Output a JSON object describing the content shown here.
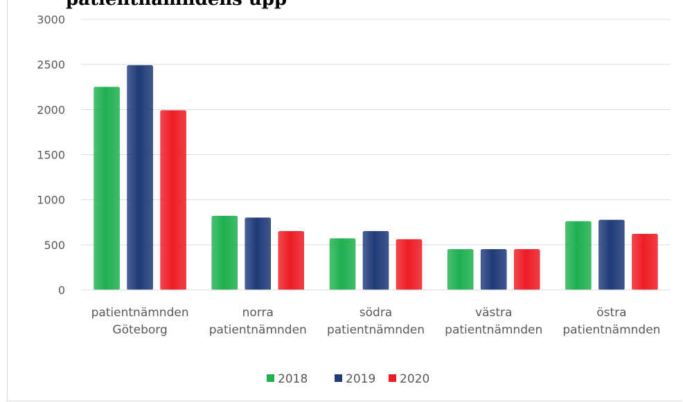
{
  "chart_data": {
    "type": "bar",
    "title": "patientnämndens upp",
    "categories": [
      [
        "patientnämnden",
        "Göteborg"
      ],
      [
        "norra",
        "patientnämnden"
      ],
      [
        "södra",
        "patientnämnden"
      ],
      [
        "västra",
        "patientnämnden"
      ],
      [
        "östra",
        "patientnämnden"
      ]
    ],
    "series": [
      {
        "name": "2018",
        "color": "#1fb04f",
        "values": [
          2250,
          820,
          570,
          450,
          760
        ]
      },
      {
        "name": "2019",
        "color": "#1f3a78",
        "values": [
          2490,
          800,
          650,
          450,
          775
        ]
      },
      {
        "name": "2020",
        "color": "#ee1c24",
        "values": [
          1990,
          650,
          560,
          450,
          620
        ]
      }
    ],
    "yticks": [
      "0",
      "500",
      "1000",
      "1500",
      "2000",
      "2500",
      "3000"
    ],
    "ylim": [
      0,
      3000
    ],
    "grid": true,
    "legend_position": "bottom"
  }
}
